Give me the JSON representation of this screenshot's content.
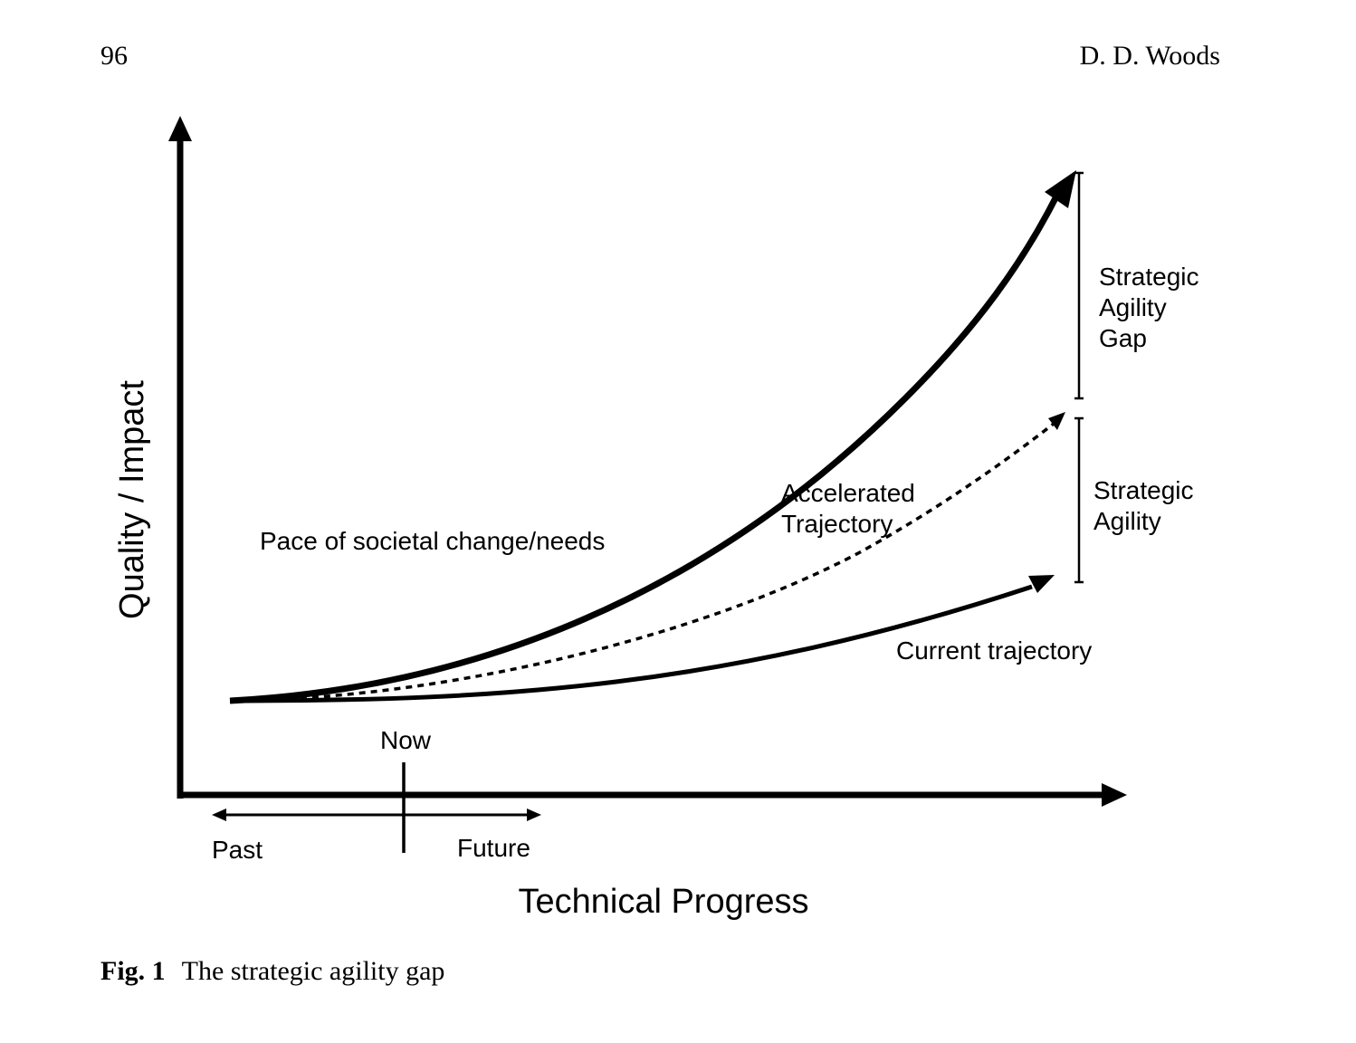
{
  "header": {
    "page_number": "96",
    "author": "D. D. Woods"
  },
  "figure": {
    "y_axis_label": "Quality / Impact",
    "x_axis_label": "Technical Progress",
    "now_label": "Now",
    "past_label": "Past",
    "future_label": "Future",
    "curves": {
      "societal": "Pace of societal change/needs",
      "accelerated_line1": "Accelerated",
      "accelerated_line2": "Trajectory",
      "current": "Current trajectory"
    },
    "gaps": {
      "gap_line1": "Strategic",
      "gap_line2": "Agility",
      "gap_line3": "Gap",
      "agility_line1": "Strategic",
      "agility_line2": "Agility"
    }
  },
  "caption": {
    "label": "Fig. 1",
    "text": "The strategic agility gap"
  }
}
